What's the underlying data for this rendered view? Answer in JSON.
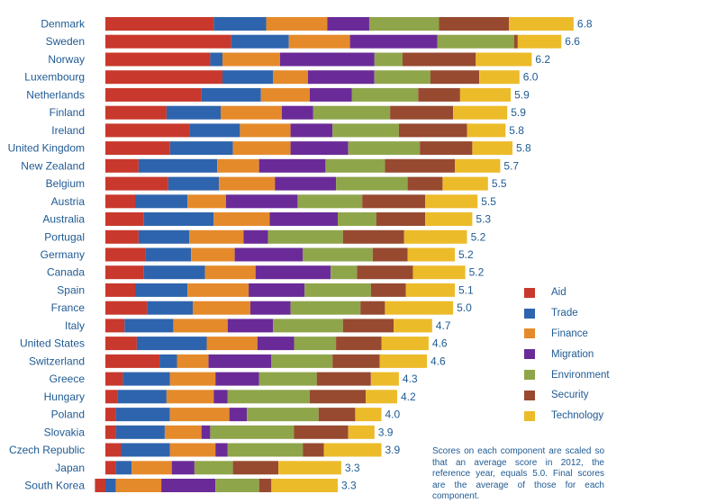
{
  "chart_data": {
    "type": "bar",
    "orientation": "horizontal",
    "stacked": true,
    "series": [
      {
        "name": "Aid",
        "color": "#c9382c"
      },
      {
        "name": "Trade",
        "color": "#2e64ad"
      },
      {
        "name": "Finance",
        "color": "#e58a2b"
      },
      {
        "name": "Migration",
        "color": "#6a2b98"
      },
      {
        "name": "Environment",
        "color": "#8fa54a"
      },
      {
        "name": "Security",
        "color": "#974a30"
      },
      {
        "name": "Technology",
        "color": "#ecbb2a"
      }
    ],
    "rows": [
      {
        "country": "Denmark",
        "score": "6.8",
        "segments": [
          6.2,
          3.0,
          3.5,
          2.4,
          4.0,
          4.0,
          3.7
        ]
      },
      {
        "country": "Sweden",
        "score": "6.6",
        "segments": [
          7.2,
          3.3,
          3.5,
          5.0,
          4.4,
          0.2,
          2.5
        ]
      },
      {
        "country": "Norway",
        "score": "6.2",
        "segments": [
          6.0,
          0.7,
          3.3,
          5.4,
          1.6,
          4.2,
          3.2
        ]
      },
      {
        "country": "Luxembourg",
        "score": "6.0",
        "segments": [
          6.7,
          2.9,
          2.0,
          3.8,
          3.2,
          2.8,
          2.3
        ]
      },
      {
        "country": "Netherlands",
        "score": "5.9",
        "segments": [
          5.5,
          3.4,
          2.8,
          2.4,
          3.8,
          2.4,
          2.9
        ]
      },
      {
        "country": "Finland",
        "score": "5.9",
        "segments": [
          3.5,
          3.1,
          3.5,
          1.8,
          4.4,
          3.6,
          3.1
        ]
      },
      {
        "country": "Ireland",
        "score": "5.8",
        "segments": [
          4.8,
          2.9,
          2.9,
          2.4,
          3.8,
          3.9,
          2.2
        ]
      },
      {
        "country": "United Kingdom",
        "score": "5.8",
        "segments": [
          3.7,
          3.6,
          3.3,
          3.3,
          4.1,
          3.0,
          2.3
        ]
      },
      {
        "country": "New Zealand",
        "score": "5.7",
        "segments": [
          1.9,
          4.5,
          2.4,
          3.8,
          3.4,
          4.0,
          2.6
        ]
      },
      {
        "country": "Belgium",
        "score": "5.5",
        "segments": [
          3.6,
          2.9,
          3.2,
          3.5,
          4.1,
          2.0,
          2.6
        ]
      },
      {
        "country": "Austria",
        "score": "5.5",
        "segments": [
          1.7,
          3.0,
          2.2,
          4.1,
          3.7,
          3.6,
          3.0
        ]
      },
      {
        "country": "Australia",
        "score": "5.3",
        "segments": [
          2.2,
          4.0,
          3.2,
          3.9,
          2.2,
          2.8,
          2.7
        ]
      },
      {
        "country": "Portugal",
        "score": "5.2",
        "segments": [
          1.9,
          2.9,
          3.1,
          1.4,
          4.3,
          3.5,
          3.6
        ]
      },
      {
        "country": "Germany",
        "score": "5.2",
        "segments": [
          2.3,
          2.6,
          2.5,
          3.9,
          4.0,
          2.0,
          2.7
        ]
      },
      {
        "country": "Canada",
        "score": "5.2",
        "segments": [
          2.2,
          3.5,
          2.9,
          4.3,
          1.5,
          3.2,
          3.0
        ]
      },
      {
        "country": "Spain",
        "score": "5.1",
        "segments": [
          1.7,
          3.0,
          3.5,
          3.2,
          3.8,
          2.0,
          2.8
        ]
      },
      {
        "country": "France",
        "score": "5.0",
        "segments": [
          2.4,
          2.6,
          3.3,
          2.3,
          4.0,
          1.4,
          3.9
        ]
      },
      {
        "country": "Italy",
        "score": "4.7",
        "segments": [
          1.1,
          2.8,
          3.1,
          2.6,
          4.0,
          2.9,
          2.2
        ]
      },
      {
        "country": "United States",
        "score": "4.6",
        "segments": [
          1.8,
          4.0,
          2.9,
          2.1,
          2.4,
          2.6,
          2.7
        ]
      },
      {
        "country": "Switzerland",
        "score": "4.6",
        "segments": [
          3.1,
          1.0,
          1.8,
          3.6,
          3.5,
          2.7,
          2.7
        ]
      },
      {
        "country": "Greece",
        "score": "4.3",
        "segments": [
          1.0,
          2.7,
          2.6,
          2.5,
          3.3,
          3.1,
          1.6
        ]
      },
      {
        "country": "Hungary",
        "score": "4.2",
        "segments": [
          0.7,
          2.8,
          2.7,
          0.8,
          4.7,
          3.2,
          1.8
        ]
      },
      {
        "country": "Poland",
        "score": "4.0",
        "segments": [
          0.6,
          3.1,
          3.4,
          1.0,
          4.1,
          2.1,
          1.5
        ]
      },
      {
        "country": "Slovakia",
        "score": "3.9",
        "segments": [
          0.6,
          2.8,
          2.1,
          0.5,
          4.8,
          3.1,
          1.5
        ]
      },
      {
        "country": "Czech Republic",
        "score": "3.9",
        "segments": [
          0.9,
          2.8,
          2.6,
          0.7,
          4.3,
          1.2,
          3.3
        ]
      },
      {
        "country": "Japan",
        "score": "3.3",
        "segments": [
          0.6,
          0.9,
          2.3,
          1.3,
          2.2,
          2.6,
          3.6
        ]
      },
      {
        "country": "South Korea",
        "score": "3.3",
        "segments": [
          -0.6,
          0.6,
          2.6,
          3.1,
          2.5,
          0.7,
          3.8
        ]
      }
    ],
    "xlim": [
      -0.6,
      27
    ],
    "note": "Scores on each component are scaled so that an average score in 2012, the reference year, equals 5.0. Final scores are the average of those for each component."
  }
}
